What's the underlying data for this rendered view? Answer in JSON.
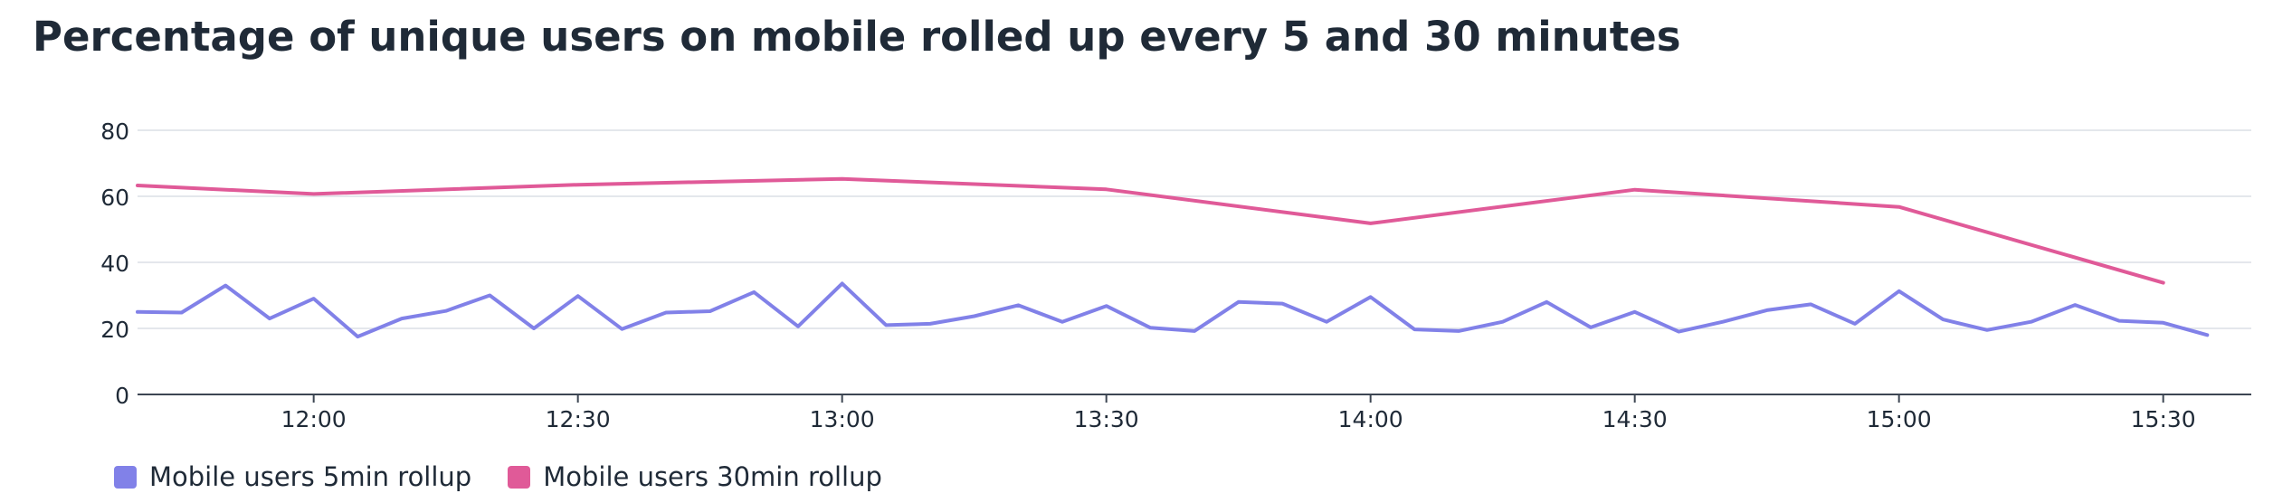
{
  "chart_data": {
    "type": "line",
    "title": "Percentage of unique users on mobile rolled up every 5 and 30 minutes",
    "xlabel": "",
    "ylabel": "",
    "x_ticks": [
      "12:00",
      "12:30",
      "13:00",
      "13:30",
      "14:00",
      "14:30",
      "15:00",
      "15:30"
    ],
    "y_ticks": [
      0,
      20,
      40,
      60,
      80
    ],
    "ylim": [
      0,
      80
    ],
    "xlim": [
      "11:40",
      "15:40"
    ],
    "grid": true,
    "legend_position": "bottom-left",
    "series": [
      {
        "name": "Mobile users 5min rollup",
        "color": "#8181e8",
        "points": [
          [
            "11:40",
            25
          ],
          [
            "11:45",
            24.8
          ],
          [
            "11:50",
            33
          ],
          [
            "11:55",
            23
          ],
          [
            "12:00",
            29
          ],
          [
            "12:05",
            17.5
          ],
          [
            "12:10",
            23
          ],
          [
            "12:15",
            25.3
          ],
          [
            "12:20",
            30
          ],
          [
            "12:25",
            20
          ],
          [
            "12:30",
            29.8
          ],
          [
            "12:35",
            19.8
          ],
          [
            "12:40",
            24.8
          ],
          [
            "12:45",
            25.2
          ],
          [
            "12:50",
            31
          ],
          [
            "12:55",
            20.6
          ],
          [
            "13:00",
            33.6
          ],
          [
            "13:05",
            21
          ],
          [
            "13:10",
            21.4
          ],
          [
            "13:15",
            23.7
          ],
          [
            "13:20",
            27
          ],
          [
            "13:25",
            22
          ],
          [
            "13:30",
            26.8
          ],
          [
            "13:35",
            20.2
          ],
          [
            "13:40",
            19.2
          ],
          [
            "13:45",
            28
          ],
          [
            "13:50",
            27.5
          ],
          [
            "13:55",
            22
          ],
          [
            "14:00",
            29.5
          ],
          [
            "14:05",
            19.7
          ],
          [
            "14:10",
            19.2
          ],
          [
            "14:15",
            22
          ],
          [
            "14:20",
            28
          ],
          [
            "14:25",
            20.3
          ],
          [
            "14:30",
            25
          ],
          [
            "14:35",
            19
          ],
          [
            "14:40",
            22
          ],
          [
            "14:45",
            25.5
          ],
          [
            "14:50",
            27.3
          ],
          [
            "14:55",
            21.4
          ],
          [
            "15:00",
            31.3
          ],
          [
            "15:05",
            22.7
          ],
          [
            "15:10",
            19.5
          ],
          [
            "15:15",
            22
          ],
          [
            "15:20",
            27.1
          ],
          [
            "15:25",
            22.3
          ],
          [
            "15:30",
            21.7
          ],
          [
            "15:35",
            18
          ]
        ]
      },
      {
        "name": "Mobile users 30min rollup",
        "color": "#e05a98",
        "points": [
          [
            "11:40",
            63.3
          ],
          [
            "12:00",
            60.7
          ],
          [
            "12:30",
            63.5
          ],
          [
            "13:00",
            65.3
          ],
          [
            "13:30",
            62.1
          ],
          [
            "14:00",
            51.8
          ],
          [
            "14:30",
            62
          ],
          [
            "15:00",
            56.8
          ],
          [
            "15:30",
            33.8
          ]
        ]
      }
    ]
  }
}
